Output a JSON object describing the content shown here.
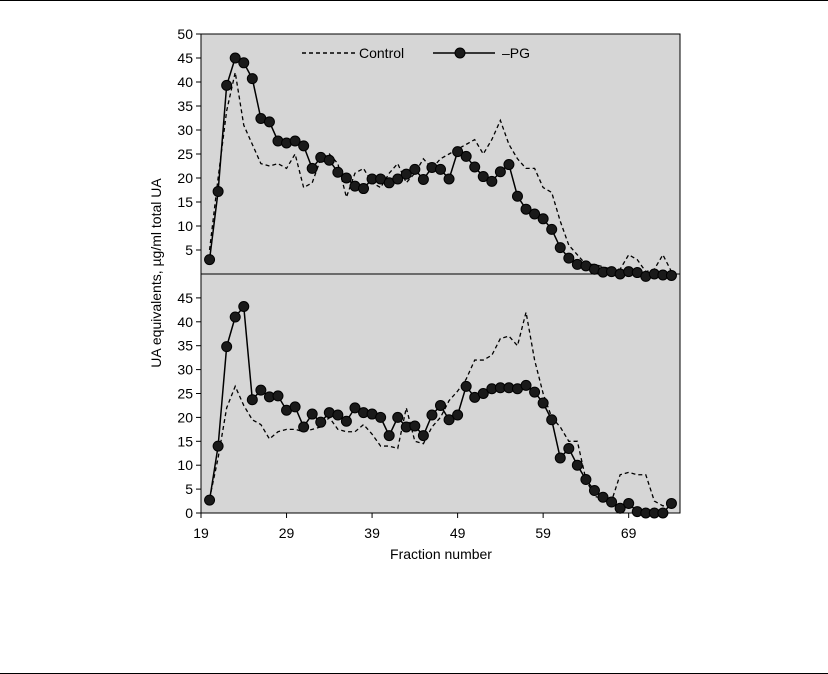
{
  "chart_data": {
    "type": "line",
    "ylabel": "UA equivalents, µg/ml total UA",
    "xlabel": "Fraction number",
    "xlim": [
      19,
      75
    ],
    "xticks": [
      "19",
      "29",
      "39",
      "49",
      "59",
      "69"
    ],
    "legend": {
      "placement": "top",
      "entries": [
        "Control",
        "–PG"
      ]
    },
    "panels": [
      {
        "position": "top",
        "ylim": [
          0,
          50
        ],
        "yticks": [
          "5",
          "10",
          "15",
          "20",
          "25",
          "30",
          "35",
          "40",
          "45",
          "50"
        ],
        "series": [
          {
            "name": "Control",
            "style": "dashed",
            "x": [
              20,
              21,
              22,
              23,
              24,
              25,
              26,
              27,
              28,
              29,
              30,
              31,
              32,
              33,
              34,
              35,
              36,
              37,
              38,
              39,
              40,
              41,
              42,
              43,
              44,
              45,
              46,
              47,
              48,
              49,
              50,
              51,
              52,
              53,
              54,
              55,
              56,
              57,
              58,
              59,
              60,
              61,
              62,
              63,
              64,
              65,
              66,
              67,
              68,
              69,
              70,
              71,
              72,
              73,
              74
            ],
            "values": [
              5,
              20,
              34,
              42,
              31,
              27,
              23,
              22.5,
              23,
              22,
              25,
              18,
              19,
              24,
              25,
              23,
              16,
              21,
              22,
              19,
              18,
              21,
              23,
              19,
              21,
              24,
              22,
              24,
              25,
              26,
              27,
              28,
              25,
              28,
              32,
              27,
              24,
              22,
              22,
              18,
              17,
              11,
              6,
              4,
              2,
              2,
              1.5,
              1,
              1,
              4,
              3,
              0.5,
              1,
              4,
              0.5
            ]
          },
          {
            "name": "–PG",
            "style": "solid-markers",
            "x": [
              20,
              21,
              22,
              23,
              24,
              25,
              26,
              27,
              28,
              29,
              30,
              31,
              32,
              33,
              34,
              35,
              36,
              37,
              38,
              39,
              40,
              41,
              42,
              43,
              44,
              45,
              46,
              47,
              48,
              49,
              50,
              51,
              52,
              53,
              54,
              55,
              56,
              57,
              58,
              59,
              60,
              61,
              62,
              63,
              64,
              65,
              66,
              67,
              68,
              69,
              70,
              71,
              72,
              73,
              74
            ],
            "values": [
              3,
              17.2,
              39.3,
              45,
              44,
              40.7,
              32.4,
              31.7,
              27.7,
              27.3,
              27.7,
              26.7,
              22,
              24.3,
              23.7,
              21.2,
              20,
              18.3,
              17.8,
              19.8,
              19.8,
              19,
              19.8,
              20.8,
              21.8,
              19.7,
              22.2,
              21.8,
              19.8,
              25.5,
              24.5,
              22.3,
              20.3,
              19.3,
              21.3,
              22.8,
              16.2,
              13.5,
              12.5,
              11.5,
              9.3,
              5.5,
              3.3,
              2,
              1.7,
              1,
              0.4,
              0.5,
              0,
              0.5,
              0.3,
              -0.5,
              0,
              -0.2,
              -0.3
            ]
          }
        ]
      },
      {
        "position": "bottom",
        "ylim": [
          0,
          50
        ],
        "yticks": [
          "0",
          "5",
          "10",
          "15",
          "20",
          "25",
          "30",
          "35",
          "40",
          "45"
        ],
        "series": [
          {
            "name": "Control",
            "style": "dashed",
            "x": [
              20,
              21,
              22,
              23,
              24,
              25,
              26,
              27,
              28,
              29,
              30,
              31,
              32,
              33,
              34,
              35,
              36,
              37,
              38,
              39,
              40,
              41,
              42,
              43,
              44,
              45,
              46,
              47,
              48,
              49,
              50,
              51,
              52,
              53,
              54,
              55,
              56,
              57,
              58,
              59,
              60,
              61,
              62,
              63,
              64,
              65,
              66,
              67,
              68,
              69,
              70,
              71,
              72,
              73,
              74
            ],
            "values": [
              3,
              11.5,
              22,
              26.5,
              22.5,
              19.5,
              18.5,
              15.5,
              17,
              17.5,
              17.5,
              17,
              17.5,
              18,
              20,
              17.5,
              17,
              17,
              18.5,
              16.5,
              14,
              14,
              13.5,
              22,
              15,
              14.5,
              18,
              20,
              23.5,
              25.5,
              28,
              32,
              32,
              33,
              36.5,
              37,
              35,
              42,
              32,
              25,
              20,
              18,
              15,
              15,
              7,
              3.5,
              3,
              2.5,
              8,
              8.5,
              8,
              8,
              2.5,
              1.5,
              1.5
            ]
          },
          {
            "name": "–PG",
            "style": "solid-markers",
            "x": [
              20,
              21,
              22,
              23,
              24,
              25,
              26,
              27,
              28,
              29,
              30,
              31,
              32,
              33,
              34,
              35,
              36,
              37,
              38,
              39,
              40,
              41,
              42,
              43,
              44,
              45,
              46,
              47,
              48,
              49,
              50,
              51,
              52,
              53,
              54,
              55,
              56,
              57,
              58,
              59,
              60,
              61,
              62,
              63,
              64,
              65,
              66,
              67,
              68,
              69,
              70,
              71,
              72,
              73,
              74
            ],
            "values": [
              2.7,
              14,
              34.8,
              41,
              43.2,
              23.7,
              25.7,
              24.3,
              24.5,
              21.5,
              22.2,
              18,
              20.7,
              19,
              21,
              20.5,
              19.2,
              22,
              21,
              20.7,
              20,
              16.2,
              20,
              18,
              18.2,
              16.2,
              20.5,
              22.5,
              19.5,
              20.5,
              26.5,
              24.2,
              25,
              26,
              26.2,
              26.2,
              26,
              26.7,
              25.3,
              23,
              19.5,
              11.5,
              13.5,
              10,
              7,
              4.7,
              3.3,
              2.3,
              1,
              2,
              0.3,
              0,
              0,
              0,
              2
            ]
          }
        ]
      }
    ]
  }
}
